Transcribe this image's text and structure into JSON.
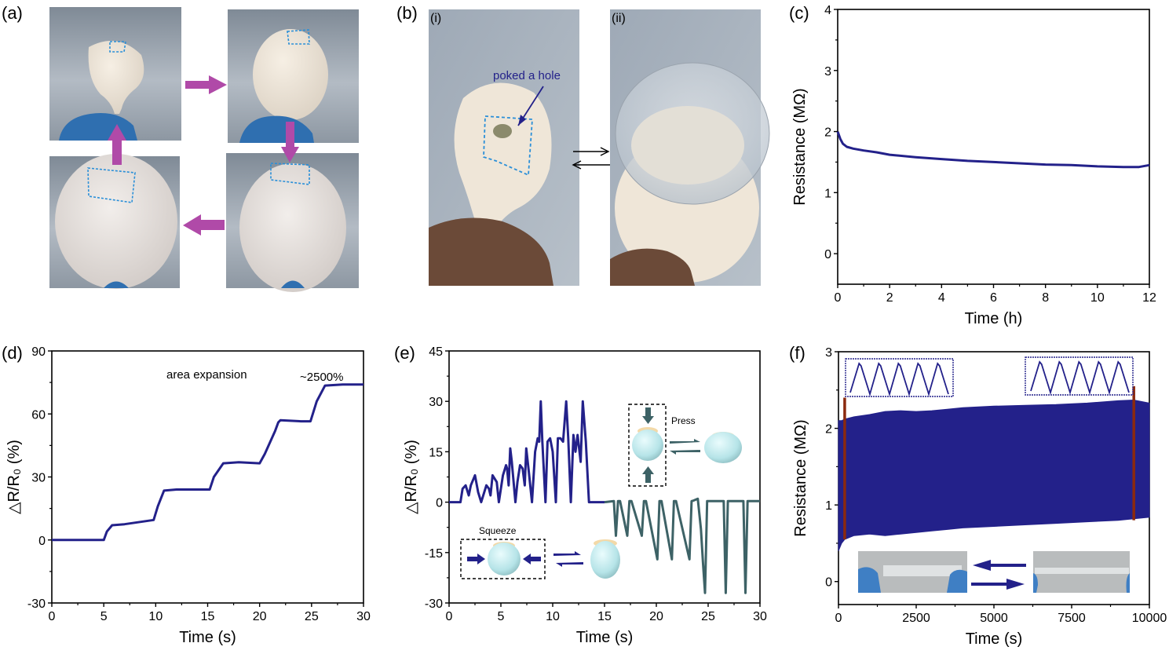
{
  "panels": {
    "a": {
      "label": "(a)"
    },
    "b": {
      "label": "(b)",
      "sub_i": "(i)",
      "sub_ii": "(ii)",
      "annotation": "poked a hole"
    },
    "c": {
      "label": "(c)"
    },
    "d": {
      "label": "(d)"
    },
    "e": {
      "label": "(e)"
    },
    "f": {
      "label": "(f)"
    }
  },
  "colors": {
    "navy": "#23218a",
    "teal": "#3d6266",
    "magenta_arrow": "#b04aa8",
    "dashed_blue": "#2a8fd8",
    "rust": "#8b2a0e",
    "photo_bg": "#a9b3bd",
    "balloon": "#efe6d8"
  },
  "chart_data": [
    {
      "id": "c",
      "type": "line",
      "title": "",
      "xlabel": "Time (h)",
      "ylabel": "Resistance (MΩ)",
      "xlim": [
        0,
        12
      ],
      "ylim": [
        -0.5,
        4
      ],
      "xticks": [
        0,
        2,
        4,
        6,
        8,
        10,
        12
      ],
      "yticks": [
        0,
        1,
        2,
        3,
        4
      ],
      "series": [
        {
          "name": "resistance",
          "color": "#23218a",
          "x": [
            0,
            0.1,
            0.2,
            0.35,
            0.6,
            1,
            1.5,
            2,
            3,
            4,
            5,
            6,
            7,
            8,
            9,
            10,
            11,
            11.6,
            12
          ],
          "y": [
            2.0,
            1.88,
            1.8,
            1.75,
            1.72,
            1.69,
            1.66,
            1.62,
            1.58,
            1.55,
            1.52,
            1.5,
            1.48,
            1.46,
            1.45,
            1.43,
            1.42,
            1.42,
            1.45
          ]
        }
      ]
    },
    {
      "id": "d",
      "type": "line",
      "title": "",
      "xlabel": "Time (s)",
      "ylabel": "△R/R₀ (%)",
      "xlim": [
        0,
        30
      ],
      "ylim": [
        -30,
        90
      ],
      "xticks": [
        0,
        5,
        10,
        15,
        20,
        25,
        30
      ],
      "yticks": [
        -30,
        0,
        30,
        60,
        90
      ],
      "annotations": [
        "area expansion",
        "~2500%"
      ],
      "series": [
        {
          "name": "area expansion",
          "color": "#23218a",
          "x": [
            0,
            5.0,
            5.3,
            5.8,
            7,
            9.8,
            10.2,
            10.8,
            12,
            15.2,
            15.6,
            16.5,
            18,
            20.0,
            20.5,
            21.5,
            21.8,
            22.0,
            24,
            24.9,
            25.5,
            26.3,
            28,
            30
          ],
          "y": [
            0,
            0,
            4,
            7,
            7.5,
            9.5,
            16,
            23.5,
            24,
            24,
            30,
            36.5,
            37,
            36.5,
            41,
            52,
            56,
            57,
            56.5,
            56.5,
            66,
            73.5,
            74,
            74
          ]
        }
      ]
    },
    {
      "id": "e",
      "type": "line",
      "title": "",
      "xlabel": "Time (s)",
      "ylabel": "△R/R₀ (%)",
      "xlim": [
        0,
        30
      ],
      "ylim": [
        -30,
        45
      ],
      "xticks": [
        0,
        5,
        10,
        15,
        20,
        25,
        30
      ],
      "yticks": [
        -30,
        -15,
        0,
        15,
        30,
        45
      ],
      "annotations": [
        "Squeeze",
        "Press"
      ],
      "series": [
        {
          "name": "Squeeze",
          "color": "#23218a",
          "x": [
            0,
            1.1,
            1.3,
            1.6,
            1.9,
            2.1,
            2.5,
            2.8,
            3.1,
            3.6,
            3.85,
            4.0,
            4.2,
            4.6,
            4.8,
            5.2,
            5.5,
            5.6,
            5.75,
            5.9,
            6.05,
            6.4,
            6.6,
            6.85,
            7.1,
            7.3,
            7.45,
            7.7,
            8.0,
            8.3,
            8.55,
            8.7,
            8.85,
            9.0,
            9.3,
            9.5,
            9.75,
            10.0,
            10.3,
            10.5,
            10.75,
            11.0,
            11.3,
            11.5,
            11.75,
            12.0,
            12.2,
            12.4,
            12.7,
            12.9,
            13.2,
            13.5,
            14.0,
            15.0
          ],
          "y": [
            0,
            0,
            4,
            5,
            2,
            5,
            8,
            3,
            0,
            5,
            4,
            2,
            8,
            6,
            0,
            8,
            11,
            10,
            5,
            16,
            12,
            0,
            6,
            11,
            10,
            5,
            16,
            9,
            0,
            15,
            19,
            18,
            30,
            18,
            0,
            18,
            19,
            15,
            0,
            19,
            19,
            18,
            30,
            19,
            0,
            20,
            15,
            20,
            12,
            30,
            18,
            0,
            0,
            0
          ]
        },
        {
          "name": "Press",
          "color": "#3d6266",
          "x": [
            15.0,
            15.9,
            16.1,
            16.3,
            16.5,
            17.2,
            17.4,
            17.6,
            18.6,
            18.8,
            19.0,
            20.1,
            20.3,
            20.5,
            21.5,
            21.7,
            21.9,
            23.2,
            23.4,
            23.6,
            24.0,
            24.3,
            24.5,
            24.7,
            24.9,
            26.5,
            26.7,
            26.9,
            28.4,
            28.6,
            28.8,
            30.0
          ],
          "y": [
            0,
            0.3,
            -10,
            0.3,
            0.3,
            -10,
            0.3,
            0.3,
            -10,
            0.3,
            0.3,
            -17,
            0.3,
            0.3,
            -17,
            0.3,
            0.3,
            -17,
            0.3,
            0.5,
            1,
            -8,
            -18,
            -27,
            0.3,
            0.3,
            -27,
            0.3,
            0.3,
            -27,
            0.3,
            0.3
          ]
        }
      ]
    },
    {
      "id": "f",
      "type": "area",
      "title": "",
      "xlabel": "Time (s)",
      "ylabel": "Resistance (MΩ)",
      "xlim": [
        0,
        10000
      ],
      "ylim": [
        -0.3,
        3
      ],
      "xticks": [
        0,
        2500,
        5000,
        7500,
        10000
      ],
      "yticks": [
        0,
        1,
        2,
        3
      ],
      "series": [
        {
          "name": "upper envelope",
          "color": "#23218a",
          "x": [
            0,
            100,
            200,
            500,
            1000,
            1500,
            2000,
            2500,
            3000,
            3500,
            4000,
            5000,
            6000,
            7000,
            8000,
            9000,
            9500,
            10000
          ],
          "y": [
            2.1,
            2.1,
            2.12,
            2.15,
            2.18,
            2.22,
            2.23,
            2.22,
            2.23,
            2.25,
            2.27,
            2.29,
            2.3,
            2.31,
            2.33,
            2.36,
            2.37,
            2.33
          ]
        },
        {
          "name": "lower envelope",
          "color": "#23218a",
          "x": [
            0,
            100,
            200,
            500,
            1000,
            1500,
            2000,
            2500,
            3000,
            3500,
            4000,
            5000,
            6000,
            7000,
            8000,
            9000,
            9500,
            10000
          ],
          "y": [
            0.4,
            0.5,
            0.55,
            0.6,
            0.62,
            0.6,
            0.62,
            0.64,
            0.66,
            0.68,
            0.7,
            0.72,
            0.74,
            0.76,
            0.78,
            0.8,
            0.82,
            0.84
          ]
        }
      ],
      "markers": [
        {
          "x": 200,
          "y_from": 0.55,
          "y_to": 2.4
        },
        {
          "x": 9500,
          "y_from": 0.8,
          "y_to": 2.55
        }
      ]
    }
  ]
}
